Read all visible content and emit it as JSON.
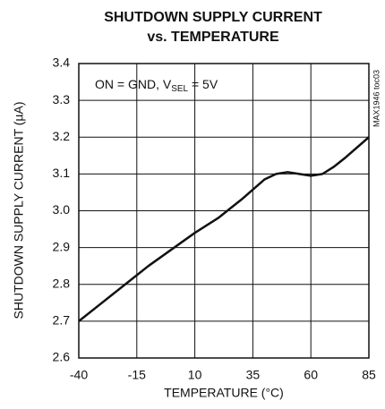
{
  "chart_data": {
    "type": "line",
    "title": [
      "SHUTDOWN SUPPLY CURRENT",
      "vs. TEMPERATURE"
    ],
    "annotation": {
      "text": "ON = GND, V",
      "subscript": "SEL",
      "suffix": " = 5V"
    },
    "side_label": "MAX1946 toc03",
    "xlabel": "TEMPERATURE (°C)",
    "ylabel": "SHUTDOWN SUPPLY CURRENT (µA)",
    "x": [
      -40,
      -30,
      -20,
      -10,
      0,
      10,
      20,
      30,
      40,
      45,
      50,
      55,
      60,
      65,
      70,
      75,
      85
    ],
    "values": [
      2.7,
      2.75,
      2.8,
      2.85,
      2.895,
      2.94,
      2.98,
      3.03,
      3.085,
      3.1,
      3.105,
      3.1,
      3.095,
      3.1,
      3.12,
      3.145,
      3.2
    ],
    "color": "#111111",
    "xlim": [
      -40,
      85
    ],
    "xticks": [
      -40,
      -15,
      10,
      35,
      60,
      85
    ],
    "ylim": [
      2.6,
      3.4
    ],
    "yticks": [
      2.6,
      2.7,
      2.8,
      2.9,
      {
        "value": 3,
        "label": "3.0"
      },
      3.1,
      3.2,
      3.3,
      3.4
    ],
    "grid": true
  }
}
